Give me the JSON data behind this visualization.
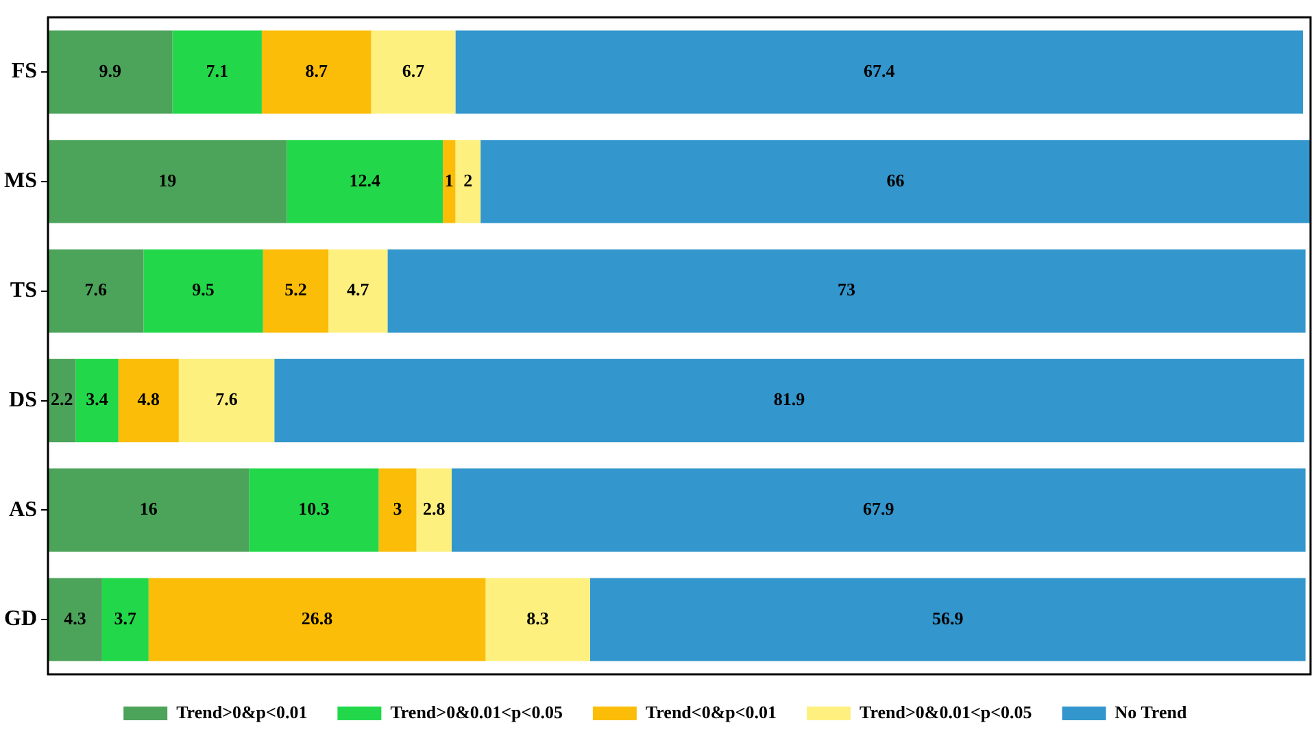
{
  "chart_data": {
    "type": "bar",
    "orientation": "horizontal",
    "stacked": true,
    "data_labels": true,
    "grid": false,
    "legend": "bottom",
    "categories": [
      "FS",
      "MS",
      "TS",
      "DS",
      "AS",
      "GD"
    ],
    "series": [
      {
        "name": "Trend>0&p<0.01",
        "color": "#4ca35a",
        "values": [
          9.9,
          19,
          7.6,
          2.2,
          16,
          4.3
        ]
      },
      {
        "name": "Trend>0&0.01<p<0.05",
        "color": "#22d84a",
        "values": [
          7.1,
          12.4,
          9.5,
          3.4,
          10.3,
          3.7
        ]
      },
      {
        "name": "Trend<0&p<0.01",
        "color": "#fbbd08",
        "values": [
          8.7,
          1,
          5.2,
          4.8,
          3,
          26.8
        ]
      },
      {
        "name": "Trend>0&0.01<p<0.05",
        "color": "#fdf07e",
        "values": [
          6.7,
          2,
          4.7,
          7.6,
          2.8,
          8.3
        ]
      },
      {
        "name": "No Trend",
        "color": "#3396cc",
        "values": [
          67.4,
          66,
          73,
          81.9,
          67.9,
          56.9
        ]
      }
    ]
  }
}
